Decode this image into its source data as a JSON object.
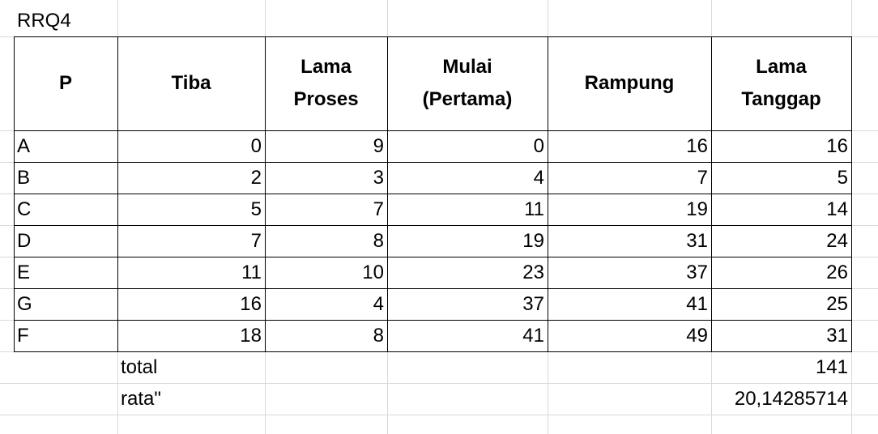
{
  "sheet_title": "RRQ4",
  "table": {
    "headers": [
      "P",
      "Tiba",
      "Lama Proses",
      "Mulai (Pertama)",
      "Rampung",
      "Lama Tanggap"
    ],
    "rows": [
      [
        "A",
        "0",
        "9",
        "0",
        "16",
        "16"
      ],
      [
        "B",
        "2",
        "3",
        "4",
        "7",
        "5"
      ],
      [
        "C",
        "5",
        "7",
        "11",
        "19",
        "14"
      ],
      [
        "D",
        "7",
        "8",
        "19",
        "31",
        "24"
      ],
      [
        "E",
        "11",
        "10",
        "23",
        "37",
        "26"
      ],
      [
        "G",
        "16",
        "4",
        "37",
        "41",
        "25"
      ],
      [
        "F",
        "18",
        "8",
        "41",
        "49",
        "31"
      ]
    ]
  },
  "summary": {
    "total_label": "total",
    "total_value": "141",
    "avg_label": "rata\"",
    "avg_value": "20,14285714"
  }
}
